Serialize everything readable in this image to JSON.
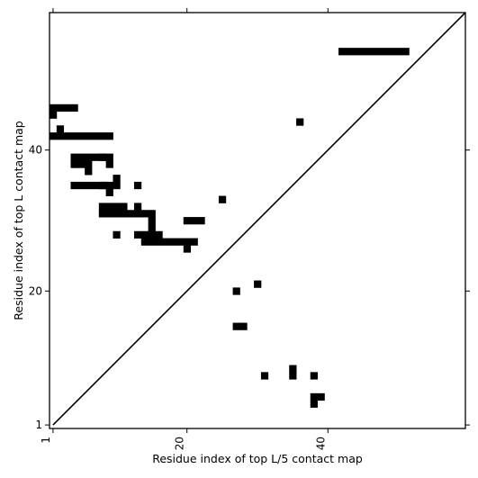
{
  "chart_data": {
    "type": "heatmap",
    "title": "",
    "xlabel": "Residue index of top L/5 contact map",
    "ylabel": "Residue index of top L contact map",
    "xlim": [
      0.5,
      59.5
    ],
    "ylim": [
      0.5,
      59.5
    ],
    "x_ticks": [
      {
        "value": 1,
        "label": "1"
      },
      {
        "value": 20,
        "label": "20"
      },
      {
        "value": 40,
        "label": "40"
      }
    ],
    "y_ticks": [
      {
        "value": 1,
        "label": "1"
      },
      {
        "value": 20,
        "label": "20"
      },
      {
        "value": 40,
        "label": "40"
      }
    ],
    "x_tick_label_rotation": -90,
    "diagonal_line": true,
    "grid": false,
    "cell_color": "#000000",
    "background_color": "#ffffff",
    "upper_triangle_contacts_xy": [
      [
        1,
        46
      ],
      [
        1,
        45
      ],
      [
        2,
        46
      ],
      [
        3,
        46
      ],
      [
        4,
        46
      ],
      [
        2,
        43
      ],
      [
        2,
        42
      ],
      [
        3,
        42
      ],
      [
        1,
        42
      ],
      [
        4,
        42
      ],
      [
        5,
        42
      ],
      [
        6,
        42
      ],
      [
        7,
        42
      ],
      [
        8,
        42
      ],
      [
        9,
        42
      ],
      [
        4,
        39
      ],
      [
        4,
        38
      ],
      [
        5,
        39
      ],
      [
        5,
        38
      ],
      [
        6,
        39
      ],
      [
        6,
        38
      ],
      [
        7,
        39
      ],
      [
        8,
        39
      ],
      [
        6,
        37
      ],
      [
        4,
        35
      ],
      [
        5,
        35
      ],
      [
        6,
        35
      ],
      [
        7,
        35
      ],
      [
        8,
        35
      ],
      [
        8,
        39
      ],
      [
        9,
        39
      ],
      [
        9,
        38
      ],
      [
        8,
        35
      ],
      [
        9,
        35
      ],
      [
        9,
        34
      ],
      [
        10,
        36
      ],
      [
        10,
        35
      ],
      [
        13,
        35
      ],
      [
        8,
        32
      ],
      [
        9,
        32
      ],
      [
        10,
        32
      ],
      [
        11,
        32
      ],
      [
        13,
        32
      ],
      [
        8,
        31
      ],
      [
        9,
        31
      ],
      [
        10,
        31
      ],
      [
        11,
        31
      ],
      [
        12,
        31
      ],
      [
        13,
        31
      ],
      [
        14,
        31
      ],
      [
        15,
        31
      ],
      [
        15,
        30
      ],
      [
        15,
        29
      ],
      [
        10,
        28
      ],
      [
        13,
        28
      ],
      [
        14,
        28
      ],
      [
        15,
        28
      ],
      [
        16,
        28
      ],
      [
        14,
        27
      ],
      [
        15,
        27
      ],
      [
        16,
        27
      ],
      [
        17,
        27
      ],
      [
        18,
        27
      ],
      [
        19,
        27
      ],
      [
        20,
        27
      ],
      [
        21,
        27
      ],
      [
        20,
        26
      ],
      [
        20,
        30
      ],
      [
        21,
        30
      ],
      [
        22,
        30
      ],
      [
        25,
        33
      ],
      [
        36,
        44
      ],
      [
        42,
        54
      ],
      [
        43,
        54
      ],
      [
        44,
        54
      ],
      [
        45,
        54
      ],
      [
        46,
        54
      ],
      [
        47,
        54
      ],
      [
        48,
        54
      ],
      [
        49,
        54
      ],
      [
        50,
        54
      ],
      [
        51,
        54
      ]
    ],
    "lower_triangle_contacts_xy": [
      [
        30,
        21
      ],
      [
        27,
        20
      ],
      [
        27,
        15
      ],
      [
        28,
        15
      ],
      [
        31,
        8
      ],
      [
        35,
        9
      ],
      [
        35,
        8
      ],
      [
        38,
        8
      ],
      [
        38,
        5
      ],
      [
        39,
        5
      ],
      [
        38,
        4
      ]
    ]
  }
}
